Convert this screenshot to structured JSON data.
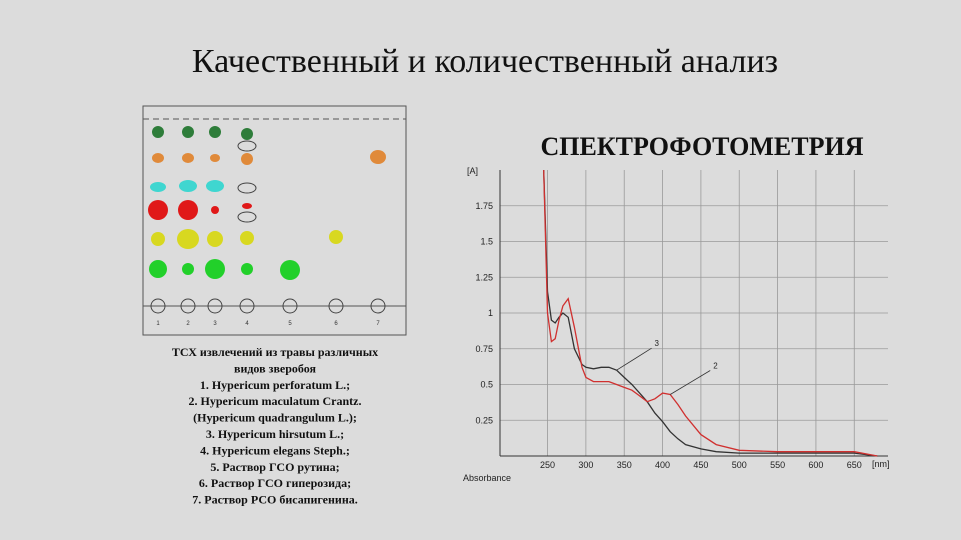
{
  "title": "Качественный и количественный анализ",
  "tlc": {
    "lane_labels": [
      "1",
      "2",
      "3",
      "4",
      "5",
      "6",
      "7"
    ],
    "caption": [
      "ТСХ извлечений из травы различных",
      "видов зверобоя",
      "1. Hypericum perforatum L.;",
      "2. Hypericum maculatum Crantz.",
      "(Hypericum quadrangulum L.);",
      "3. Hypericum hirsutum L.;",
      "4. Hypericum elegans Steph.;",
      "5. Раствор ГСО рутина;",
      "6. Раствор ГСО гиперозида;",
      "7. Раствор РСО бисапигенина."
    ]
  },
  "chart_data": {
    "type": "line",
    "title": "СПЕКТРОФОТОМЕТРИЯ",
    "y_label": "[A]",
    "x_label": "Absorbance",
    "x_unit": "[nm]",
    "x": [
      245,
      250,
      255,
      260,
      265,
      270,
      277,
      285,
      295,
      300,
      310,
      320,
      330,
      340,
      350,
      360,
      370,
      380,
      390,
      400,
      410,
      420,
      430,
      450,
      470,
      500,
      550,
      600,
      650,
      680
    ],
    "series": [
      {
        "name": "3",
        "color": "#333333",
        "values": [
          2.0,
          1.15,
          0.95,
          0.93,
          0.97,
          1.0,
          0.97,
          0.75,
          0.64,
          0.62,
          0.61,
          0.62,
          0.62,
          0.6,
          0.55,
          0.5,
          0.44,
          0.38,
          0.3,
          0.24,
          0.17,
          0.12,
          0.08,
          0.05,
          0.03,
          0.02,
          0.02,
          0.02,
          0.02,
          0.0
        ]
      },
      {
        "name": "2",
        "color": "#d0302f",
        "values": [
          2.0,
          1.0,
          0.8,
          0.82,
          0.95,
          1.05,
          1.1,
          0.9,
          0.62,
          0.55,
          0.52,
          0.52,
          0.52,
          0.5,
          0.48,
          0.46,
          0.42,
          0.38,
          0.4,
          0.44,
          0.43,
          0.36,
          0.28,
          0.15,
          0.08,
          0.04,
          0.03,
          0.03,
          0.03,
          0.0
        ]
      }
    ],
    "xlim": [
      188,
      694
    ],
    "ylim": [
      0,
      2
    ],
    "xticks": [
      250,
      300,
      350,
      400,
      450,
      500,
      550,
      600,
      650
    ],
    "yticks": [
      0.25,
      0.5,
      0.75,
      1,
      1.25,
      1.5,
      1.75
    ],
    "grid": true
  }
}
